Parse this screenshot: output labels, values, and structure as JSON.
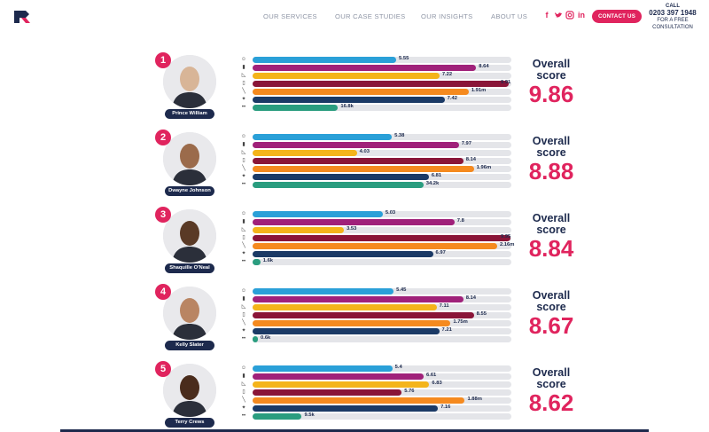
{
  "nav": {
    "items": [
      "OUR SERVICES",
      "OUR CASE STUDIES",
      "OUR INSIGHTS",
      "ABOUT US"
    ],
    "social": [
      "f",
      "t",
      "ig",
      "in"
    ],
    "cta": "CONTACT US",
    "call": {
      "label": "CALL",
      "phone": "0203 397 1948",
      "line1": "FOR A FREE",
      "line2": "CONSULTATION"
    }
  },
  "colors": {
    "accent": "#e0245e",
    "navy": "#1d2a4d",
    "metrics": [
      "#2aa0d8",
      "#a0217a",
      "#f4b41a",
      "#8a1538",
      "#f58a1f",
      "#1b3a66",
      "#2a9d7f"
    ]
  },
  "metric_icons": [
    "smile-icon",
    "beer-icon",
    "ruler-icon",
    "phone-icon",
    "pencil-icon",
    "sparkle-icon",
    "eyes-icon"
  ],
  "overall_label": "Overall score",
  "entries": [
    {
      "rank": "1",
      "name": "Prince William",
      "score": "9.86",
      "metrics": [
        {
          "label": "5.55",
          "frac": 0.555
        },
        {
          "label": "8.64",
          "frac": 0.864
        },
        {
          "label": "7.22",
          "frac": 0.722
        },
        {
          "label": "9.91",
          "frac": 0.991
        },
        {
          "label": "1.91m",
          "frac": 0.835
        },
        {
          "label": "7.42",
          "frac": 0.742
        },
        {
          "label": "16.8k",
          "frac": 0.33
        }
      ]
    },
    {
      "rank": "2",
      "name": "Dwayne Johnson",
      "score": "8.88",
      "metrics": [
        {
          "label": "5.38",
          "frac": 0.538
        },
        {
          "label": "7.97",
          "frac": 0.797
        },
        {
          "label": "4.03",
          "frac": 0.403
        },
        {
          "label": "8.14",
          "frac": 0.814
        },
        {
          "label": "1.96m",
          "frac": 0.855
        },
        {
          "label": "6.81",
          "frac": 0.681
        },
        {
          "label": "34.2k",
          "frac": 0.66
        }
      ]
    },
    {
      "rank": "3",
      "name": "Shaquille O'Neal",
      "score": "8.84",
      "metrics": [
        {
          "label": "5.03",
          "frac": 0.503
        },
        {
          "label": "7.8",
          "frac": 0.78
        },
        {
          "label": "3.53",
          "frac": 0.353
        },
        {
          "label": "9.95",
          "frac": 0.995
        },
        {
          "label": "2.16m",
          "frac": 0.945
        },
        {
          "label": "6.97",
          "frac": 0.697
        },
        {
          "label": "1.6k",
          "frac": 0.03
        }
      ]
    },
    {
      "rank": "4",
      "name": "Kelly Slater",
      "score": "8.67",
      "metrics": [
        {
          "label": "5.45",
          "frac": 0.545
        },
        {
          "label": "8.14",
          "frac": 0.814
        },
        {
          "label": "7.11",
          "frac": 0.711
        },
        {
          "label": "8.55",
          "frac": 0.855
        },
        {
          "label": "1.75m",
          "frac": 0.765
        },
        {
          "label": "7.21",
          "frac": 0.721
        },
        {
          "label": "0.6k",
          "frac": 0.012
        }
      ]
    },
    {
      "rank": "5",
      "name": "Terry Crews",
      "score": "8.62",
      "metrics": [
        {
          "label": "5.4",
          "frac": 0.54
        },
        {
          "label": "6.61",
          "frac": 0.661
        },
        {
          "label": "6.83",
          "frac": 0.683
        },
        {
          "label": "5.76",
          "frac": 0.576
        },
        {
          "label": "1.88m",
          "frac": 0.82
        },
        {
          "label": "7.16",
          "frac": 0.716
        },
        {
          "label": "9.5k",
          "frac": 0.19
        }
      ]
    }
  ]
}
